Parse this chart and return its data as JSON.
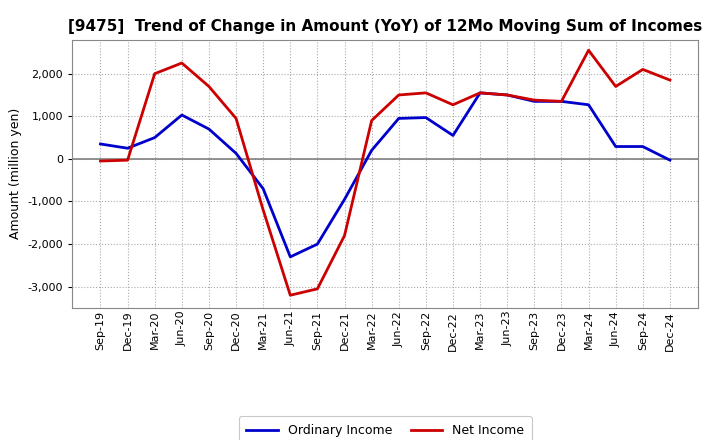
{
  "title": "[9475]  Trend of Change in Amount (YoY) of 12Mo Moving Sum of Incomes",
  "ylabel": "Amount (million yen)",
  "background_color": "#ffffff",
  "plot_bg_color": "#ffffff",
  "line_color_ordinary": "#0000cc",
  "line_color_net": "#cc0000",
  "legend_ordinary": "Ordinary Income",
  "legend_net": "Net Income",
  "x_labels": [
    "Sep-19",
    "Dec-19",
    "Mar-20",
    "Jun-20",
    "Sep-20",
    "Dec-20",
    "Mar-21",
    "Jun-21",
    "Sep-21",
    "Dec-21",
    "Mar-22",
    "Jun-22",
    "Sep-22",
    "Dec-22",
    "Mar-23",
    "Jun-23",
    "Sep-23",
    "Dec-23",
    "Mar-24",
    "Jun-24",
    "Sep-24",
    "Dec-24"
  ],
  "ordinary_income": [
    350,
    250,
    500,
    1030,
    700,
    130,
    -700,
    -2300,
    -2000,
    -950,
    200,
    950,
    970,
    550,
    1550,
    1500,
    1350,
    1350,
    1270,
    290,
    290,
    -30
  ],
  "net_income": [
    -50,
    -30,
    2000,
    2250,
    1700,
    950,
    -1200,
    -3200,
    -3050,
    -1800,
    900,
    1500,
    1550,
    1270,
    1550,
    1500,
    1380,
    1350,
    2550,
    1700,
    2100,
    1850
  ],
  "ylim": [
    -3500,
    2800
  ],
  "yticks": [
    -3000,
    -2000,
    -1000,
    0,
    1000,
    2000
  ],
  "grid_color": "#aaaaaa",
  "zero_line_color": "#808080",
  "line_width": 2.0,
  "title_fontsize": 11,
  "ylabel_fontsize": 9,
  "tick_fontsize": 8
}
